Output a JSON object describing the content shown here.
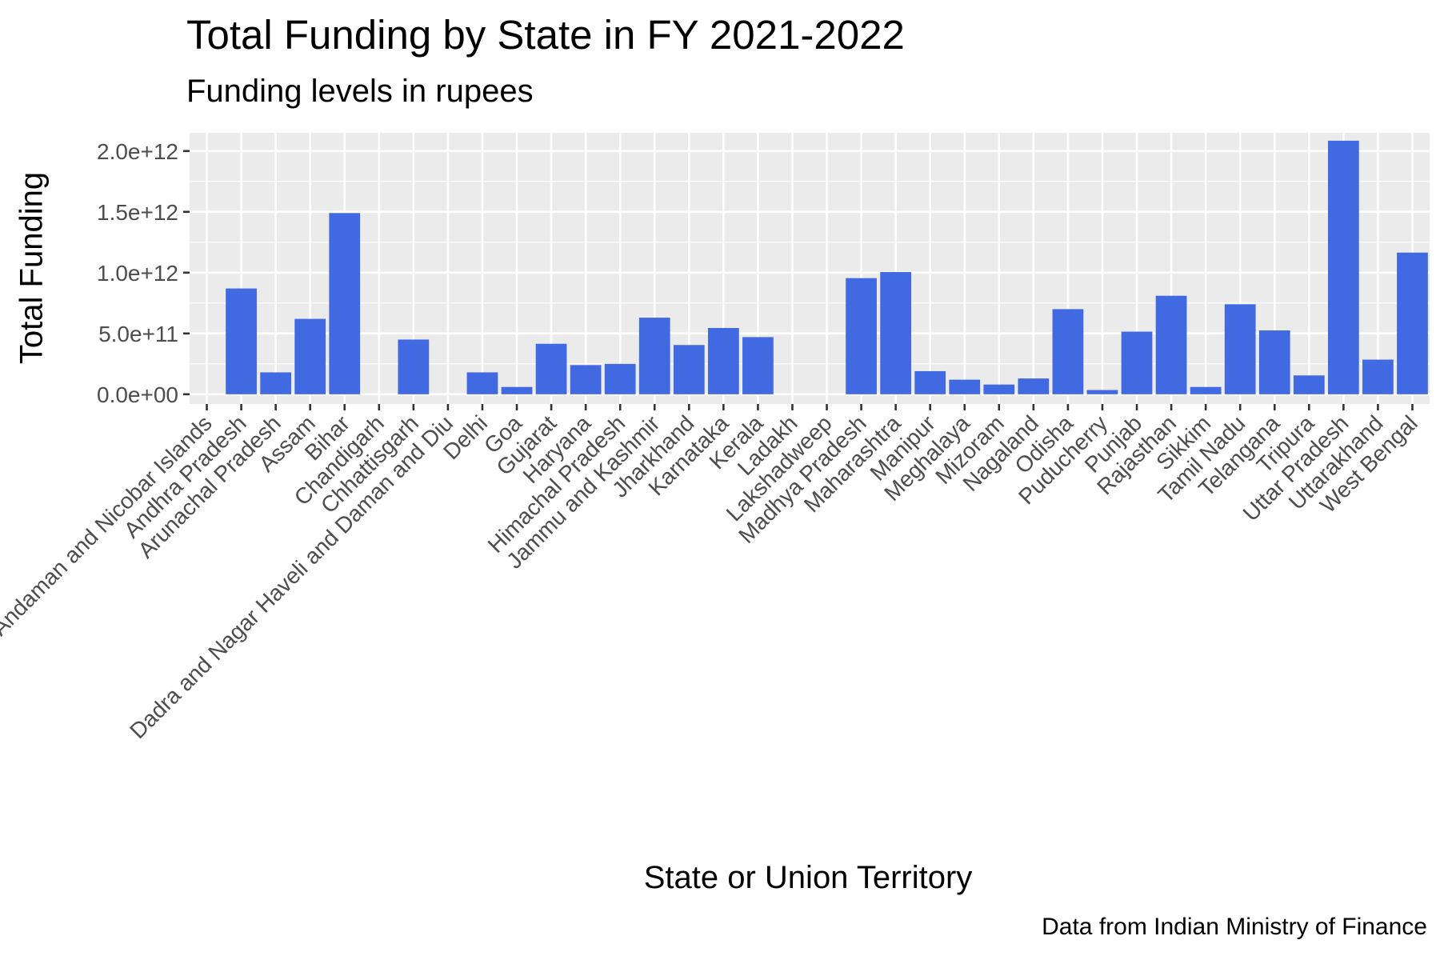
{
  "chart_data": {
    "type": "bar",
    "title": "Total Funding by State in FY 2021-2022",
    "subtitle": "Funding levels in rupees",
    "caption": "Data from Indian Ministry of Finance",
    "xlabel": "State or Union Territory",
    "ylabel": "Total Funding",
    "ylim": [
      -80000000000,
      2150000000000
    ],
    "yticks": [
      0,
      500000000000,
      1000000000000,
      1500000000000,
      2000000000000
    ],
    "ytick_labels": [
      "0.0e+00",
      "5.0e+11",
      "1.0e+12",
      "1.5e+12",
      "2.0e+12"
    ],
    "grid": true,
    "bar_color": "#4169E1",
    "panel_color": "#EBEBEB",
    "categories": [
      "Andaman and Nicobar Islands",
      "Andhra Pradesh",
      "Arunachal Pradesh",
      "Assam",
      "Bihar",
      "Chandigarh",
      "Chhattisgarh",
      "Dadra and Nagar Haveli and Daman and Diu",
      "Delhi",
      "Goa",
      "Gujarat",
      "Haryana",
      "Himachal Pradesh",
      "Jammu and Kashmir",
      "Jharkhand",
      "Karnataka",
      "Kerala",
      "Ladakh",
      "Lakshadweep",
      "Madhya Pradesh",
      "Maharashtra",
      "Manipur",
      "Meghalaya",
      "Mizoram",
      "Nagaland",
      "Odisha",
      "Puducherry",
      "Punjab",
      "Rajasthan",
      "Sikkim",
      "Tamil Nadu",
      "Telangana",
      "Tripura",
      "Uttar Pradesh",
      "Uttarakhand",
      "West Bengal"
    ],
    "values": [
      0,
      870000000000,
      180000000000,
      620000000000,
      1490000000000,
      0,
      450000000000,
      0,
      180000000000,
      60000000000,
      415000000000,
      240000000000,
      250000000000,
      630000000000,
      405000000000,
      545000000000,
      470000000000,
      0,
      0,
      955000000000,
      1005000000000,
      190000000000,
      120000000000,
      80000000000,
      130000000000,
      700000000000,
      35000000000,
      515000000000,
      810000000000,
      60000000000,
      740000000000,
      525000000000,
      155000000000,
      2085000000000,
      285000000000,
      1165000000000
    ]
  }
}
